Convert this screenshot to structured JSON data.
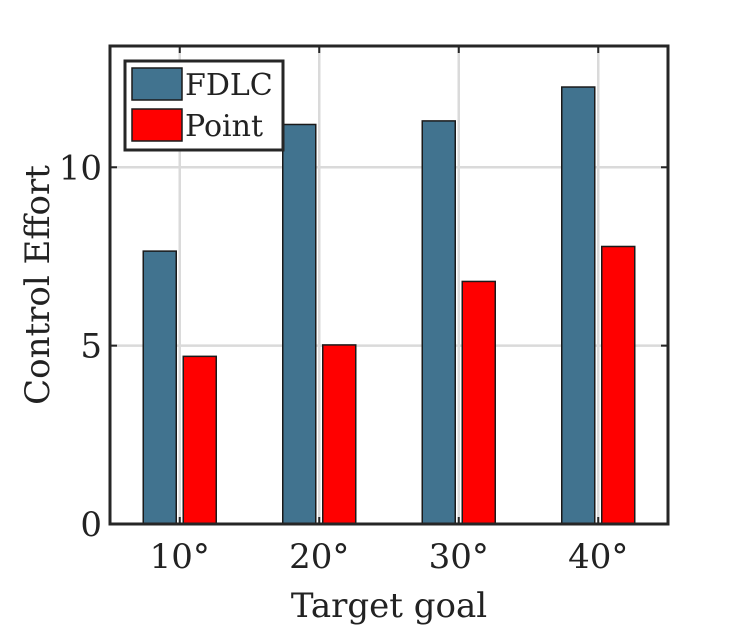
{
  "chart_data": {
    "type": "bar",
    "categories": [
      "10°",
      "20°",
      "30°",
      "40°"
    ],
    "series": [
      {
        "name": "FDLC",
        "values": [
          7.65,
          11.2,
          11.3,
          12.25
        ],
        "color": "#41738f"
      },
      {
        "name": "Point",
        "values": [
          4.7,
          5.02,
          6.8,
          7.78
        ],
        "color": "#ff0000"
      }
    ],
    "xlabel": "Target goal",
    "ylabel": "Control Effort",
    "ylim": [
      0,
      13.4
    ],
    "yticks": [
      0,
      5,
      10
    ],
    "ytick_labels": [
      "0",
      "5",
      "10"
    ],
    "grid": true,
    "legend": "top-left"
  }
}
